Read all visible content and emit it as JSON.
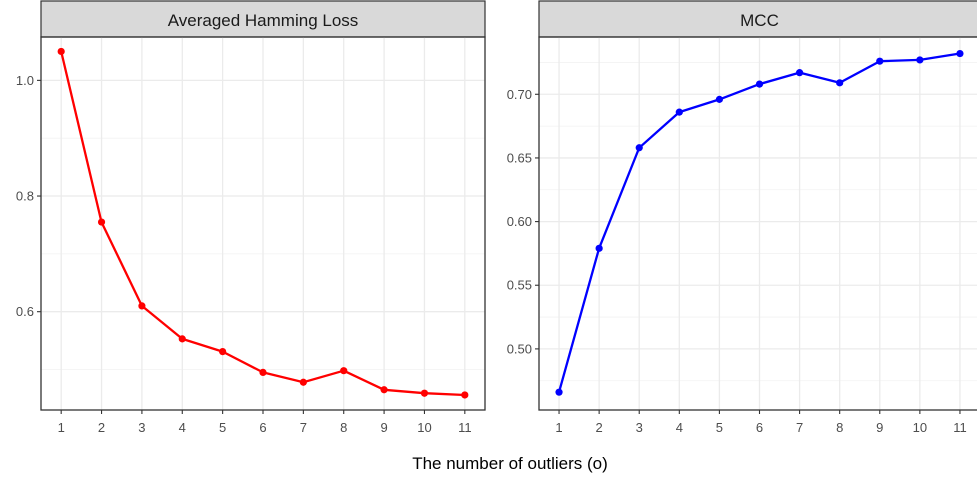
{
  "xlabel": "The number of outliers (o)",
  "chart_data": [
    {
      "type": "line",
      "title": "Averaged Hamming Loss",
      "x": [
        1,
        2,
        3,
        4,
        5,
        6,
        7,
        8,
        9,
        10,
        11
      ],
      "xticks": [
        "1",
        "2",
        "3",
        "4",
        "5",
        "6",
        "7",
        "8",
        "9",
        "10",
        "11"
      ],
      "series": [
        {
          "values": [
            1.05,
            0.755,
            0.61,
            0.553,
            0.531,
            0.495,
            0.478,
            0.498,
            0.465,
            0.459,
            0.456
          ]
        }
      ],
      "ylim": [
        0.43,
        1.075
      ],
      "yticks": [
        0.6,
        0.8,
        1.0
      ],
      "ytick_labels": [
        "0.6",
        "0.8",
        "1.0"
      ],
      "color": "#ff0000",
      "grid": true
    },
    {
      "type": "line",
      "title": "MCC",
      "x": [
        1,
        2,
        3,
        4,
        5,
        6,
        7,
        8,
        9,
        10,
        11
      ],
      "xticks": [
        "1",
        "2",
        "3",
        "4",
        "5",
        "6",
        "7",
        "8",
        "9",
        "10",
        "11"
      ],
      "series": [
        {
          "values": [
            0.466,
            0.579,
            0.658,
            0.686,
            0.696,
            0.708,
            0.717,
            0.709,
            0.726,
            0.727,
            0.732
          ]
        }
      ],
      "ylim": [
        0.452,
        0.745
      ],
      "yticks": [
        0.5,
        0.55,
        0.6,
        0.65,
        0.7
      ],
      "ytick_labels": [
        "0.50",
        "0.55",
        "0.60",
        "0.65",
        "0.70"
      ],
      "color": "#0000ff",
      "grid": true
    }
  ]
}
